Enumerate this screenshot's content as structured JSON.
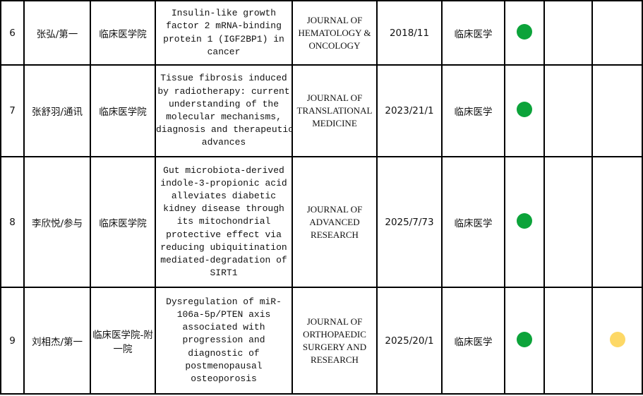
{
  "table": {
    "rows": [
      [
        "6",
        "张弘/第一",
        "临床医学院",
        [
          "Insulin-like growth",
          "factor 2 mRNA-binding",
          "protein 1 (IGF2BP1) in",
          "cancer"
        ],
        [
          "JOURNAL OF",
          "HEMATOLOGY &",
          "ONCOLOGY"
        ],
        "2018/11",
        "临床医学"
      ],
      [
        "7",
        "张舒羽/通讯",
        "临床医学院",
        [
          "Tissue fibrosis induced",
          "by radiotherapy: current",
          "understanding of the",
          "molecular mechanisms,",
          "diagnosis and therapeutic",
          "advances"
        ],
        [
          "JOURNAL OF",
          "TRANSLATIONAL",
          "MEDICINE"
        ],
        "2023/21/1",
        "临床医学"
      ],
      [
        "8",
        "李欣悦/参与",
        "临床医学院",
        [
          "Gut microbiota-derived",
          "indole-3-propionic acid",
          "alleviates diabetic",
          "kidney disease through",
          "its mitochondrial",
          "protective effect via",
          "reducing ubiquitination",
          "mediated-degradation of",
          "SIRT1"
        ],
        [
          "JOURNAL OF",
          "ADVANCED",
          "RESEARCH"
        ],
        "2025/7/73",
        "临床医学"
      ],
      [
        "9",
        "刘相杰/第一",
        "临床医学院-附一院",
        [
          "Dysregulation of miR-",
          "106a-5p/PTEN axis",
          "associated with",
          "progression and",
          "diagnostic of",
          "postmenopausal",
          "osteoporosis"
        ],
        [
          "JOURNAL OF",
          "ORTHOPAEDIC",
          "SURGERY AND",
          "RESEARCH"
        ],
        "2025/20/1",
        "临床医学"
      ]
    ]
  }
}
